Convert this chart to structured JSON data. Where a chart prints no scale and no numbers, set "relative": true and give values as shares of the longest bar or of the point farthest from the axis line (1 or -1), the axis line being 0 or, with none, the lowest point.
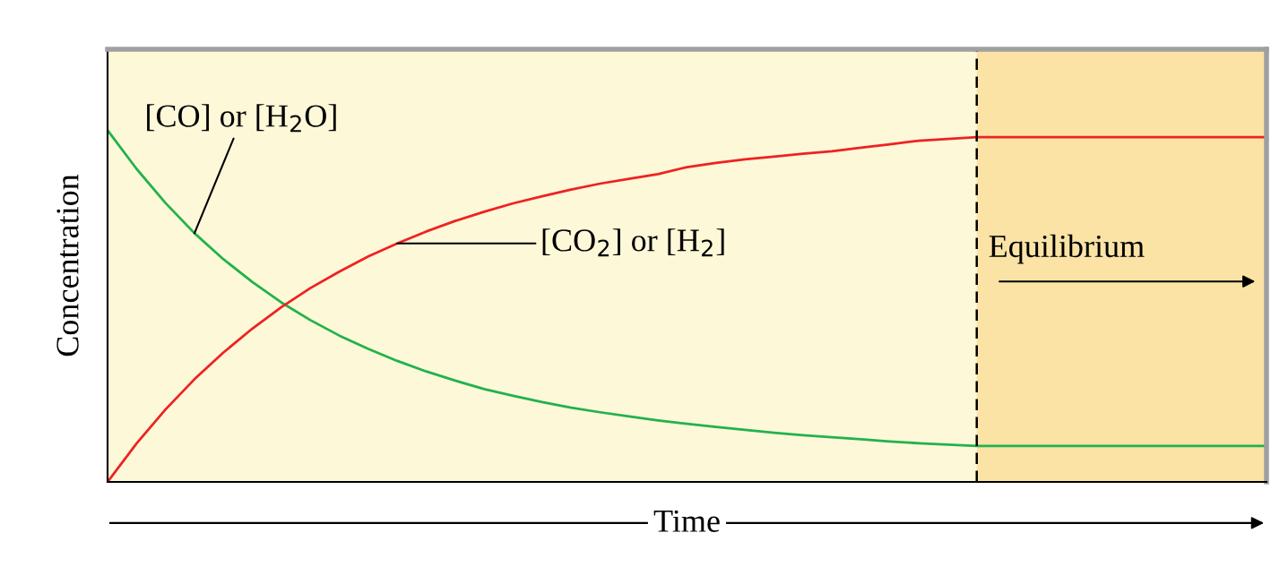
{
  "chart_data": {
    "type": "line",
    "relative": true,
    "ylabel": "Concentration",
    "xlabel": "Time",
    "categories": [
      null,
      null,
      null,
      null,
      null,
      null,
      null,
      null,
      null,
      null,
      null,
      null,
      null,
      null,
      null,
      null,
      null,
      null,
      null,
      null,
      null,
      null,
      null,
      null,
      null,
      null,
      null,
      null,
      null,
      null,
      null,
      null,
      null,
      null,
      null,
      null,
      null,
      null,
      null,
      null,
      null
    ],
    "series": [
      {
        "name": "[CO] or [H$_{2}$O]",
        "color": "#22b24c",
        "values": [
          1.0,
          0.89,
          0.793,
          0.707,
          0.633,
          0.568,
          0.51,
          0.46,
          0.416,
          0.378,
          0.344,
          0.314,
          0.288,
          0.264,
          0.245,
          0.227,
          0.211,
          0.198,
          0.186,
          0.175,
          0.165,
          0.156,
          0.148,
          0.14,
          0.133,
          0.127,
          0.121,
          0.115,
          0.11,
          0.106,
          0.102,
          0.102,
          0.102,
          0.102,
          0.102,
          0.102,
          0.102,
          0.102,
          0.102,
          0.102,
          0.102
        ]
      },
      {
        "name": "[CO$_{2}$] or [H$_{2}$]",
        "color": "#ee2222",
        "values": [
          0.0,
          0.109,
          0.206,
          0.292,
          0.368,
          0.436,
          0.497,
          0.551,
          0.598,
          0.641,
          0.678,
          0.712,
          0.742,
          0.768,
          0.792,
          0.812,
          0.831,
          0.848,
          0.862,
          0.875,
          0.895,
          0.907,
          0.917,
          0.925,
          0.933,
          0.94,
          0.95,
          0.96,
          0.97,
          0.975,
          0.98,
          0.98,
          0.98,
          0.98,
          0.98,
          0.98,
          0.98,
          0.98,
          0.98,
          0.98,
          0.98
        ]
      }
    ],
    "annotations": [
      "Equilibrium"
    ],
    "legend": false,
    "marker": "none",
    "line_style": "solid"
  }
}
